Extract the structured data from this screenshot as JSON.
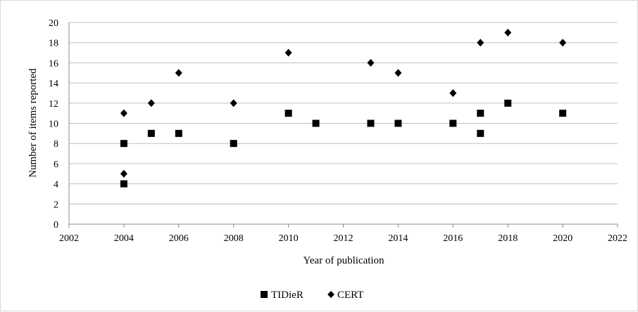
{
  "chart_data": {
    "type": "scatter",
    "title": "",
    "xlabel": "Year of publication",
    "ylabel": "Number of items reported",
    "xlim": [
      2002,
      2022
    ],
    "ylim": [
      0,
      20
    ],
    "x_ticks": [
      "2002",
      "2004",
      "2006",
      "2008",
      "2010",
      "2012",
      "2014",
      "2016",
      "2018",
      "2020",
      "2022"
    ],
    "y_ticks": [
      "0",
      "2",
      "4",
      "6",
      "8",
      "10",
      "12",
      "14",
      "16",
      "18",
      "20"
    ],
    "grid": "horizontal",
    "legend_position": "bottom",
    "series": [
      {
        "name": "TIDieR",
        "marker": "square",
        "color": "#000000",
        "points": [
          {
            "x": 2004,
            "y": 8
          },
          {
            "x": 2004,
            "y": 4
          },
          {
            "x": 2005,
            "y": 9
          },
          {
            "x": 2006,
            "y": 9
          },
          {
            "x": 2008,
            "y": 8
          },
          {
            "x": 2010,
            "y": 11
          },
          {
            "x": 2011,
            "y": 10
          },
          {
            "x": 2013,
            "y": 10
          },
          {
            "x": 2014,
            "y": 10
          },
          {
            "x": 2016,
            "y": 10
          },
          {
            "x": 2017,
            "y": 11
          },
          {
            "x": 2017,
            "y": 9
          },
          {
            "x": 2018,
            "y": 12
          },
          {
            "x": 2020,
            "y": 11
          }
        ]
      },
      {
        "name": "CERT",
        "marker": "diamond",
        "color": "#000000",
        "points": [
          {
            "x": 2004,
            "y": 11
          },
          {
            "x": 2004,
            "y": 5
          },
          {
            "x": 2005,
            "y": 12
          },
          {
            "x": 2006,
            "y": 15
          },
          {
            "x": 2008,
            "y": 12
          },
          {
            "x": 2010,
            "y": 17
          },
          {
            "x": 2013,
            "y": 16
          },
          {
            "x": 2014,
            "y": 15
          },
          {
            "x": 2016,
            "y": 13
          },
          {
            "x": 2017,
            "y": 18
          },
          {
            "x": 2018,
            "y": 19
          },
          {
            "x": 2020,
            "y": 18
          }
        ]
      }
    ]
  }
}
